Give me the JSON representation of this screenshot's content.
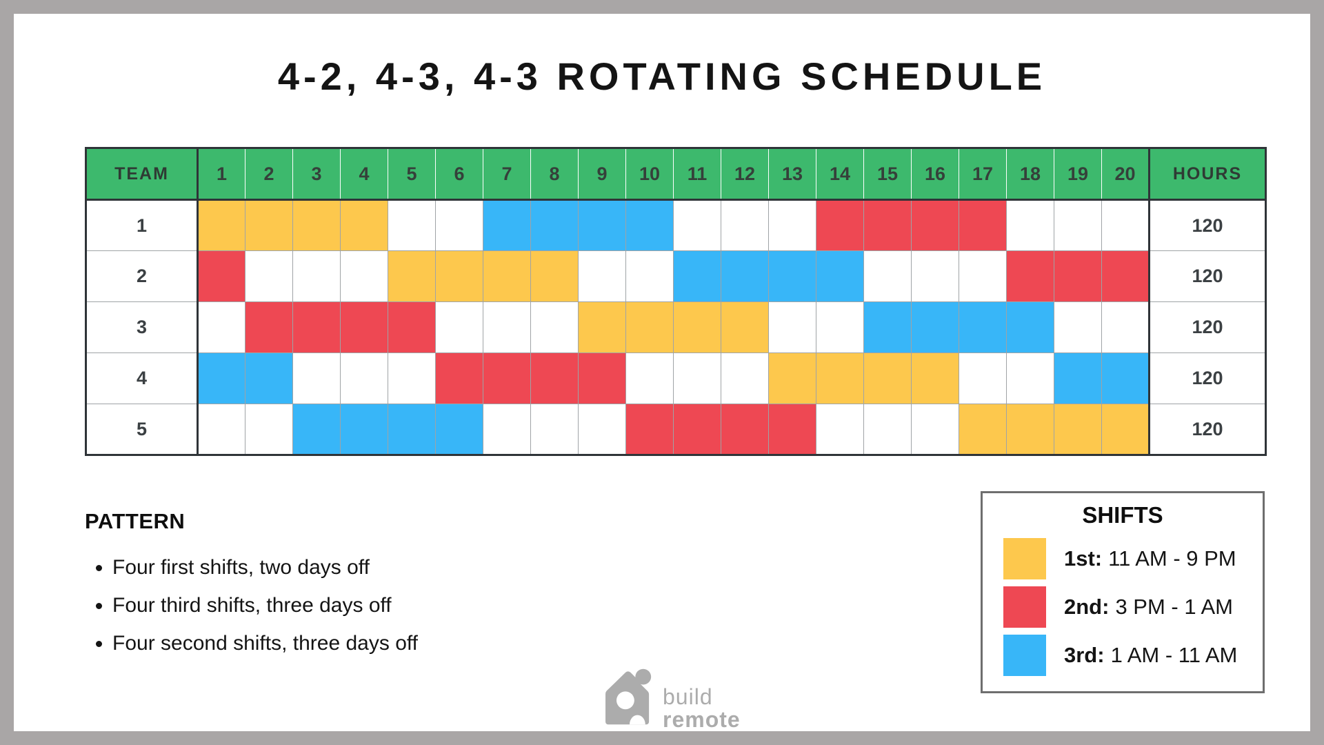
{
  "page": {
    "title": "4-2, 4-3, 4-3 ROTATING SCHEDULE"
  },
  "colors": {
    "header_green": "#3DB96D",
    "shift_1st_yellow": "#FDC84D",
    "shift_2nd_red": "#EE4853",
    "shift_3rd_blue": "#38B6F8",
    "frame_gray": "#A9A6A6",
    "table_border_dark": "#2F3438",
    "gridline_gray": "#9FA3A6",
    "logo_gray": "#ACACAC"
  },
  "chart_data": {
    "type": "table",
    "title": "4-2, 4-3, 4-3 ROTATING SCHEDULE",
    "team_col_header": "TEAM",
    "hours_col_header": "HOURS",
    "day_numbers": [
      "1",
      "2",
      "3",
      "4",
      "5",
      "6",
      "7",
      "8",
      "9",
      "10",
      "11",
      "12",
      "13",
      "14",
      "15",
      "16",
      "17",
      "18",
      "19",
      "20"
    ],
    "shift_legend_note": "1st=yellow, 2nd=red, 3rd=blue, off=white",
    "teams": [
      {
        "team": "1",
        "hours": "120",
        "shifts": [
          "1st",
          "1st",
          "1st",
          "1st",
          "off",
          "off",
          "3rd",
          "3rd",
          "3rd",
          "3rd",
          "off",
          "off",
          "off",
          "2nd",
          "2nd",
          "2nd",
          "2nd",
          "off",
          "off",
          "off"
        ]
      },
      {
        "team": "2",
        "hours": "120",
        "shifts": [
          "2nd",
          "off",
          "off",
          "off",
          "1st",
          "1st",
          "1st",
          "1st",
          "off",
          "off",
          "3rd",
          "3rd",
          "3rd",
          "3rd",
          "off",
          "off",
          "off",
          "2nd",
          "2nd",
          "2nd"
        ]
      },
      {
        "team": "3",
        "hours": "120",
        "shifts": [
          "off",
          "2nd",
          "2nd",
          "2nd",
          "2nd",
          "off",
          "off",
          "off",
          "1st",
          "1st",
          "1st",
          "1st",
          "off",
          "off",
          "3rd",
          "3rd",
          "3rd",
          "3rd",
          "off",
          "off"
        ]
      },
      {
        "team": "4",
        "hours": "120",
        "shifts": [
          "3rd",
          "3rd",
          "off",
          "off",
          "off",
          "2nd",
          "2nd",
          "2nd",
          "2nd",
          "off",
          "off",
          "off",
          "1st",
          "1st",
          "1st",
          "1st",
          "off",
          "off",
          "3rd",
          "3rd"
        ]
      },
      {
        "team": "5",
        "hours": "120",
        "shifts": [
          "off",
          "off",
          "3rd",
          "3rd",
          "3rd",
          "3rd",
          "off",
          "off",
          "off",
          "2nd",
          "2nd",
          "2nd",
          "2nd",
          "off",
          "off",
          "off",
          "1st",
          "1st",
          "1st",
          "1st"
        ]
      }
    ]
  },
  "pattern": {
    "heading": "PATTERN",
    "bullets": [
      "Four first shifts, two days off",
      "Four third shifts, three days off",
      "Four second shifts, three days off"
    ]
  },
  "legend": {
    "heading": "SHIFTS",
    "items": [
      {
        "label": "1st:",
        "time": "11 AM - 9 PM",
        "color": "#FDC84D"
      },
      {
        "label": "2nd:",
        "time": "3 PM - 1 AM",
        "color": "#EE4853"
      },
      {
        "label": "3rd:",
        "time": "1 AM - 11 AM",
        "color": "#38B6F8"
      }
    ]
  },
  "logo": {
    "line1": "build",
    "line2": "remote"
  }
}
